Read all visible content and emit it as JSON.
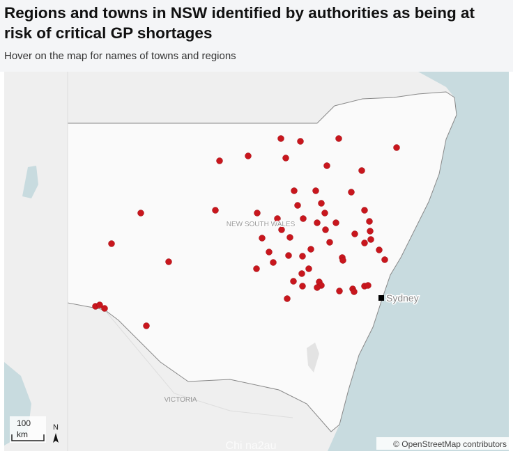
{
  "header": {
    "title": "Regions and towns in NSW identified by authorities as being at risk of critical GP shortages",
    "subtitle": "Hover on the map for names of towns and regions"
  },
  "map": {
    "region_label": "NEW SOUTH WALES",
    "neighbor_label": "VICTORIA",
    "city_label": "Sydney",
    "scale_value": "100",
    "scale_unit": "km",
    "north_label": "N",
    "attribution": "© OpenStreetMap contributors",
    "watermark": "Chi na2au"
  }
}
